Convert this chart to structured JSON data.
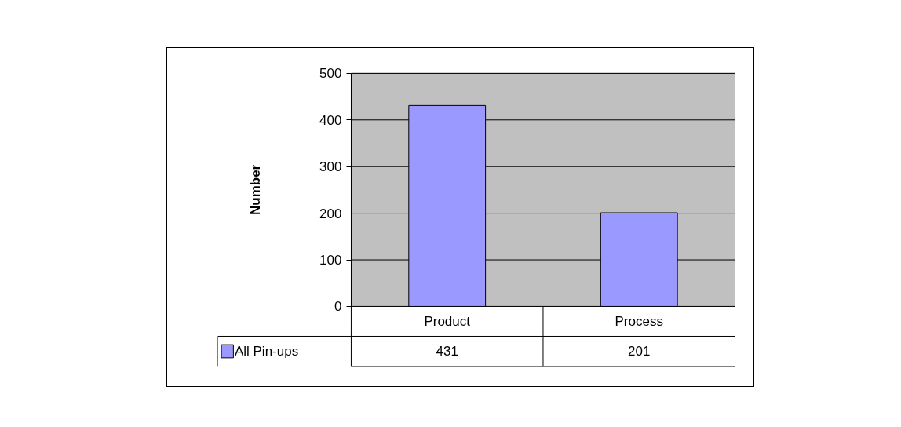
{
  "chart_data": {
    "type": "bar",
    "ylabel": "Number",
    "categories": [
      "Product",
      "Process"
    ],
    "series": [
      {
        "name": "All Pin-ups",
        "color": "#9999ff",
        "values": [
          431,
          201
        ]
      }
    ],
    "ylim": [
      0,
      500
    ],
    "yticks": [
      0,
      100,
      200,
      300,
      400,
      500
    ],
    "grid": "y",
    "legend": "bottom left",
    "data_labels": true
  }
}
